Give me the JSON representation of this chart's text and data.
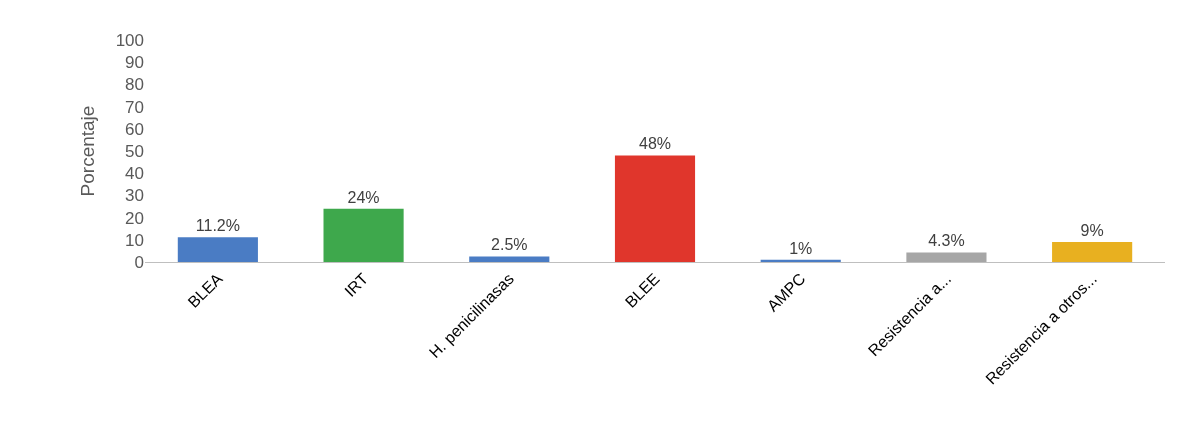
{
  "chart_data": {
    "type": "bar",
    "ylabel": "Porcentaje",
    "categories": [
      "BLEA",
      "IRT",
      "H. penicilinasas",
      "BLEE",
      "AMPC",
      "Resistencia a...",
      "Resistencia a otros..."
    ],
    "values": [
      11.2,
      24,
      2.5,
      48,
      1,
      4.3,
      9
    ],
    "colors": [
      "#4a7cc4",
      "#3ea84c",
      "#4a7cc4",
      "#e0362c",
      "#4a7cc4",
      "#a6a6a6",
      "#e8b020"
    ],
    "value_labels": [
      "11.2%",
      "24%",
      "2.5%",
      "48%",
      "1%",
      "4.3%",
      "9%"
    ],
    "ylim": [
      0,
      100
    ],
    "yticks": [
      0,
      10,
      20,
      30,
      40,
      50,
      60,
      70,
      80,
      90,
      100
    ]
  }
}
